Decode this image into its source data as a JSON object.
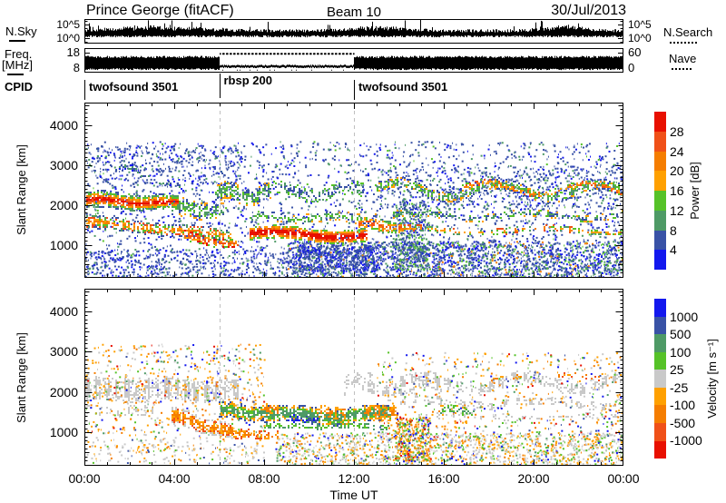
{
  "header": {
    "title": "Prince George (fitACF)",
    "beam": "Beam 10",
    "date": "30/Jul/2013"
  },
  "noise_panel": {
    "left_label": "N.Sky",
    "right_label": "N.Search",
    "tick_top": "10^5",
    "tick_bottom": "10^0"
  },
  "freq_panel": {
    "left_label_1": "Freq.",
    "left_label_2": "[MHz]",
    "tick_top": "18",
    "tick_bottom": "8",
    "right_tick_top": "60",
    "right_tick_bottom": "0",
    "right_label": "Nave"
  },
  "cpid_row": {
    "label": "CPID",
    "entries": [
      {
        "t": 0,
        "text": "twofsound 3501",
        "high": false
      },
      {
        "t": 6,
        "text": "rbsp 200",
        "high": true
      },
      {
        "t": 12,
        "text": "twofsound 3501",
        "high": false
      }
    ]
  },
  "chart_data": {
    "type": "heatmap",
    "title": "Prince George (fitACF) Beam 10 30/Jul/2013",
    "x": {
      "label": "Time UT",
      "min_hour": 0,
      "max_hour": 24,
      "tick_hours": [
        0,
        4,
        8,
        12,
        16,
        20,
        24
      ],
      "tick_labels": [
        "00:00",
        "04:00",
        "08:00",
        "12:00",
        "16:00",
        "20:00",
        "00:00"
      ]
    },
    "y": {
      "label": "Slant Range [km]",
      "min_km": 170,
      "max_km": 4560,
      "ticks": [
        1000,
        2000,
        3000,
        4000
      ]
    },
    "guide_hours": [
      6,
      12
    ],
    "noise": {
      "scale": "log 10^0 - 10^5",
      "base_frac": 0.62,
      "bumps": [
        {
          "h": 2.2,
          "w": 1.0,
          "a": 2.5
        },
        {
          "h": 4.6,
          "w": 1.4,
          "a": 2.0
        },
        {
          "h": 13.2,
          "w": 1.2,
          "a": 3.0
        },
        {
          "h": 21.4,
          "w": 0.9,
          "a": 3.5
        }
      ]
    },
    "freq": {
      "scale_mhz": [
        8,
        18
      ],
      "nave_scale": [
        0,
        60
      ],
      "segments": [
        {
          "t0": 0,
          "t1": 6,
          "mode": "solid"
        },
        {
          "t0": 6,
          "t1": 12,
          "mode": "split"
        },
        {
          "t0": 12,
          "t1": 24,
          "mode": "solid"
        }
      ]
    },
    "power": {
      "colorbar": {
        "title": "Power [dB]",
        "tick_labels": [
          "28",
          "24",
          "20",
          "16",
          "12",
          "8",
          "4"
        ],
        "colors": [
          "#e81000",
          "#f05018",
          "#f57d00",
          "#ffa000",
          "#56c228",
          "#4e9a66",
          "#3952a6",
          "#1318ee"
        ]
      },
      "features": [
        {
          "kind": "scatter",
          "t0": 0,
          "t1": 24,
          "r0": 250,
          "r1": 3600,
          "n": 2400,
          "w": [
            [
              6,
              0.6
            ],
            [
              7,
              0.25
            ],
            [
              5,
              0.1
            ],
            [
              4,
              0.05
            ]
          ]
        },
        {
          "kind": "scatter",
          "t0": 9,
          "t1": 24,
          "r0": 200,
          "r1": 1100,
          "n": 2100,
          "w": [
            [
              6,
              0.5
            ],
            [
              7,
              0.2
            ],
            [
              5,
              0.15
            ],
            [
              4,
              0.1
            ],
            [
              2,
              0.05
            ]
          ]
        },
        {
          "kind": "scatter",
          "t0": 0,
          "t1": 9,
          "r0": 200,
          "r1": 900,
          "n": 450,
          "w": [
            [
              6,
              0.7
            ],
            [
              7,
              0.2
            ],
            [
              5,
              0.1
            ]
          ]
        },
        {
          "kind": "scatter",
          "t0": 0.5,
          "t1": 7,
          "r0": 2500,
          "r1": 3500,
          "n": 330,
          "w": [
            [
              6,
              0.7
            ],
            [
              7,
              0.2
            ],
            [
              5,
              0.1
            ]
          ]
        },
        {
          "kind": "scatter",
          "t0": 13,
          "t1": 24,
          "r0": 1900,
          "r1": 3000,
          "n": 480,
          "w": [
            [
              6,
              0.65
            ],
            [
              5,
              0.2
            ],
            [
              7,
              0.15
            ]
          ]
        },
        {
          "kind": "scatter",
          "t0": 13.8,
          "t1": 15.3,
          "r0": 400,
          "r1": 2100,
          "n": 380,
          "w": [
            [
              6,
              0.5
            ],
            [
              5,
              0.25
            ],
            [
              4,
              0.15
            ],
            [
              7,
              0.1
            ]
          ]
        },
        {
          "kind": "scatter",
          "t0": 9.5,
          "t1": 13,
          "r0": 350,
          "r1": 1000,
          "n": 420,
          "w": [
            [
              6,
              0.7
            ],
            [
              7,
              0.3
            ]
          ]
        },
        {
          "kind": "band",
          "t0": 0,
          "t1": 4.2,
          "c0": 2150,
          "c1": 2050,
          "h0": 450,
          "h1": 380,
          "A": 40,
          "P": 3,
          "d": 0.85,
          "cols": [
            0,
            1,
            2,
            3,
            4,
            5,
            6
          ]
        },
        {
          "kind": "band",
          "t0": 0,
          "t1": 6.5,
          "c0": 1600,
          "c1": 1250,
          "h0": 350,
          "h1": 300,
          "A": 30,
          "P": 4,
          "d": 0.6,
          "cols": [
            2,
            3,
            4,
            1,
            5,
            6
          ]
        },
        {
          "kind": "band",
          "t0": 1.5,
          "t1": 4.5,
          "c0": 3000,
          "c1": 2400,
          "h0": 200,
          "h1": 150,
          "A": 60,
          "P": 2,
          "d": 0.25,
          "cols": [
            6,
            5,
            7
          ]
        },
        {
          "kind": "band",
          "t0": 3.8,
          "t1": 6.2,
          "c0": 1950,
          "c1": 1850,
          "h0": 500,
          "h1": 420,
          "A": 50,
          "P": 2,
          "d": 0.45,
          "cols": [
            5,
            4,
            6,
            3
          ]
        },
        {
          "kind": "band",
          "t0": 4.3,
          "t1": 6.8,
          "c0": 1250,
          "c1": 1000,
          "h0": 300,
          "h1": 220,
          "A": 30,
          "P": 2,
          "d": 0.65,
          "cols": [
            1,
            2,
            3,
            0,
            4
          ]
        },
        {
          "kind": "band",
          "t0": 5.8,
          "t1": 8.3,
          "c0": 2300,
          "c1": 2300,
          "h0": 500,
          "h1": 420,
          "A": 100,
          "P": 2,
          "d": 0.5,
          "cols": [
            5,
            4,
            6,
            3
          ]
        },
        {
          "kind": "band",
          "t0": 7.3,
          "t1": 12.6,
          "c0": 1300,
          "c1": 1250,
          "h0": 330,
          "h1": 330,
          "A": 60,
          "P": 5,
          "d": 0.95,
          "cols": [
            0,
            0,
            1,
            2,
            3,
            4
          ]
        },
        {
          "kind": "band",
          "t0": 7.3,
          "t1": 13,
          "c0": 1700,
          "c1": 1700,
          "h0": 250,
          "h1": 250,
          "A": 50,
          "P": 3,
          "d": 0.4,
          "cols": [
            4,
            5,
            6,
            3
          ]
        },
        {
          "kind": "band",
          "t0": 8,
          "t1": 12.5,
          "c0": 2350,
          "c1": 2350,
          "h0": 350,
          "h1": 350,
          "A": 120,
          "P": 3,
          "d": 0.35,
          "cols": [
            6,
            5,
            4
          ]
        },
        {
          "kind": "band",
          "t0": 12.2,
          "t1": 14.2,
          "c0": 1550,
          "c1": 1450,
          "h0": 380,
          "h1": 300,
          "A": 40,
          "P": 2,
          "d": 0.6,
          "cols": [
            1,
            2,
            3,
            4,
            5
          ]
        },
        {
          "kind": "band",
          "t0": 12.8,
          "t1": 24,
          "c0": 2400,
          "c1": 2350,
          "h0": 280,
          "h1": 280,
          "A": 180,
          "P": 4.5,
          "d": 0.55,
          "gap": 0.1,
          "cols": [
            5,
            4,
            3,
            6
          ]
        },
        {
          "kind": "band",
          "t0": 16.8,
          "t1": 24,
          "c0": 2450,
          "c1": 2400,
          "h0": 150,
          "h1": 150,
          "A": 150,
          "P": 4.5,
          "d": 0.5,
          "cols": [
            2,
            3,
            1,
            4
          ]
        },
        {
          "kind": "band",
          "t0": 13.5,
          "t1": 24,
          "c0": 1750,
          "c1": 1750,
          "h0": 180,
          "h1": 180,
          "A": 80,
          "P": 5,
          "d": 0.45,
          "gap": 0.12,
          "cols": [
            5,
            6,
            4,
            3
          ]
        },
        {
          "kind": "band",
          "t0": 13,
          "t1": 24,
          "c0": 1380,
          "c1": 1380,
          "h0": 160,
          "h1": 160,
          "A": 60,
          "P": 6,
          "d": 0.5,
          "gap": 0.25,
          "cols": [
            3,
            2,
            4,
            5,
            1
          ]
        }
      ]
    },
    "velocity": {
      "colorbar": {
        "title": "Velocity [m s⁻¹]",
        "tick_labels": [
          "1000",
          "500",
          "100",
          "25",
          "-25",
          "-100",
          "-500",
          "-1000"
        ],
        "colors": [
          "#1318ee",
          "#3952a6",
          "#4e9a66",
          "#56c228",
          "#c9c9c9",
          "#ffa000",
          "#f57d00",
          "#f05018",
          "#e81000"
        ]
      },
      "features": [
        {
          "kind": "band",
          "t0": 0,
          "t1": 6.8,
          "c0": 2100,
          "c1": 2050,
          "h0": 620,
          "h1": 520,
          "A": 40,
          "P": 3,
          "d": 0.8,
          "stripe": 0.22,
          "cols": [
            4
          ]
        },
        {
          "kind": "band",
          "t0": 0,
          "t1": 3,
          "c0": 1550,
          "c1": 1550,
          "h0": 260,
          "h1": 260,
          "A": 30,
          "P": 2,
          "d": 0.35,
          "stripe": 0.22,
          "cols": [
            4
          ]
        },
        {
          "kind": "scatter",
          "t0": 0,
          "t1": 8,
          "r0": 900,
          "r1": 3200,
          "n": 650,
          "w": [
            [
              5,
              0.3
            ],
            [
              6,
              0.15
            ],
            [
              4,
              0.2
            ],
            [
              3,
              0.1
            ],
            [
              2,
              0.08
            ],
            [
              0,
              0.07
            ],
            [
              8,
              0.05
            ],
            [
              1,
              0.05
            ]
          ]
        },
        {
          "kind": "scatter",
          "t0": 0,
          "t1": 8,
          "r0": 250,
          "r1": 900,
          "n": 240,
          "w": [
            [
              4,
              0.5
            ],
            [
              5,
              0.2
            ],
            [
              3,
              0.1
            ],
            [
              6,
              0.1
            ],
            [
              1,
              0.1
            ]
          ]
        },
        {
          "kind": "band",
          "t0": 3.8,
          "t1": 6.6,
          "c0": 1450,
          "c1": 1000,
          "h0": 460,
          "h1": 360,
          "A": 40,
          "P": 2,
          "d": 0.75,
          "cols": [
            6,
            5,
            7,
            4
          ]
        },
        {
          "kind": "band",
          "t0": 6.6,
          "t1": 8.6,
          "c0": 980,
          "c1": 950,
          "h0": 260,
          "h1": 200,
          "A": 20,
          "P": 2,
          "d": 0.5,
          "cols": [
            6,
            5,
            7
          ]
        },
        {
          "kind": "band",
          "t0": 5.9,
          "t1": 8.2,
          "c0": 1550,
          "c1": 1500,
          "h0": 420,
          "h1": 400,
          "A": 50,
          "P": 2,
          "d": 0.7,
          "cols": [
            2,
            3,
            5,
            1
          ]
        },
        {
          "kind": "band",
          "t0": 8,
          "t1": 13.6,
          "c0": 1450,
          "c1": 1450,
          "h0": 430,
          "h1": 430,
          "A": 60,
          "P": 4,
          "d": 0.8,
          "cols": [
            2,
            2,
            3,
            5,
            1
          ]
        },
        {
          "kind": "band",
          "t0": 8,
          "t1": 8.7,
          "c0": 1600,
          "c1": 1550,
          "h0": 260,
          "h1": 260,
          "A": 0,
          "P": 2,
          "d": 0.5,
          "cols": [
            6,
            5
          ]
        },
        {
          "kind": "band",
          "t0": 10.3,
          "t1": 11.6,
          "c0": 1500,
          "c1": 1500,
          "h0": 320,
          "h1": 320,
          "A": 30,
          "P": 1.5,
          "d": 0.5,
          "cols": [
            6,
            5
          ]
        },
        {
          "kind": "band",
          "t0": 12.4,
          "t1": 13.9,
          "c0": 1500,
          "c1": 1550,
          "h0": 360,
          "h1": 360,
          "A": 30,
          "P": 1.5,
          "d": 0.55,
          "cols": [
            6,
            5
          ]
        },
        {
          "kind": "band",
          "t0": 9,
          "t1": 10.4,
          "c0": 1350,
          "c1": 1350,
          "h0": 230,
          "h1": 230,
          "A": 20,
          "P": 2,
          "d": 0.6,
          "cols": [
            1,
            0,
            2
          ]
        },
        {
          "kind": "band",
          "t0": 8,
          "t1": 13.5,
          "c0": 1170,
          "c1": 1170,
          "h0": 130,
          "h1": 130,
          "A": 20,
          "P": 3,
          "d": 0.5,
          "cols": [
            3,
            2
          ]
        },
        {
          "kind": "band",
          "t0": 11.5,
          "t1": 16.2,
          "c0": 2150,
          "c1": 2150,
          "h0": 520,
          "h1": 460,
          "A": 150,
          "P": 3,
          "d": 0.45,
          "stripe": 0.3,
          "cols": [
            4
          ]
        },
        {
          "kind": "band",
          "t0": 14,
          "t1": 24,
          "c0": 2250,
          "c1": 2250,
          "h0": 300,
          "h1": 300,
          "A": 170,
          "P": 4.5,
          "d": 0.6,
          "stripe": 0.25,
          "gap": 0.1,
          "cols": [
            4
          ]
        },
        {
          "kind": "band",
          "t0": 14,
          "t1": 24,
          "c0": 1750,
          "c1": 1750,
          "h0": 200,
          "h1": 200,
          "A": 70,
          "P": 5,
          "d": 0.5,
          "stripe": 0.28,
          "gap": 0.15,
          "cols": [
            4
          ]
        },
        {
          "kind": "band",
          "t0": 15,
          "t1": 24,
          "c0": 1400,
          "c1": 1400,
          "h0": 150,
          "h1": 150,
          "A": 50,
          "P": 6,
          "d": 0.45,
          "stripe": 0.3,
          "gap": 0.2,
          "cols": [
            4
          ]
        },
        {
          "kind": "scatter",
          "t0": 13,
          "t1": 24,
          "r0": 900,
          "r1": 3000,
          "n": 620,
          "w": [
            [
              5,
              0.25
            ],
            [
              4,
              0.2
            ],
            [
              6,
              0.12
            ],
            [
              3,
              0.12
            ],
            [
              0,
              0.1
            ],
            [
              1,
              0.08
            ],
            [
              8,
              0.07
            ],
            [
              2,
              0.06
            ]
          ]
        },
        {
          "kind": "scatter",
          "t0": 8.5,
          "t1": 24,
          "r0": 200,
          "r1": 1000,
          "n": 1500,
          "w": [
            [
              4,
              0.45
            ],
            [
              5,
              0.2
            ],
            [
              3,
              0.12
            ],
            [
              6,
              0.1
            ],
            [
              2,
              0.07
            ],
            [
              0,
              0.06
            ]
          ]
        },
        {
          "kind": "scatter",
          "t0": 13.8,
          "t1": 15.4,
          "r0": 300,
          "r1": 1400,
          "n": 330,
          "w": [
            [
              6,
              0.3
            ],
            [
              3,
              0.2
            ],
            [
              5,
              0.2
            ],
            [
              0,
              0.1
            ],
            [
              8,
              0.1
            ],
            [
              2,
              0.1
            ]
          ]
        },
        {
          "kind": "band",
          "t0": 15.8,
          "t1": 17.3,
          "c0": 1550,
          "c1": 1550,
          "h0": 260,
          "h1": 260,
          "A": 40,
          "P": 2,
          "d": 0.35,
          "cols": [
            2,
            3,
            5
          ]
        },
        {
          "kind": "band",
          "t0": 18,
          "t1": 19.5,
          "c0": 2350,
          "c1": 2350,
          "h0": 150,
          "h1": 150,
          "A": 60,
          "P": 3,
          "d": 0.3,
          "cols": [
            5,
            6
          ]
        },
        {
          "kind": "band",
          "t0": 21,
          "t1": 23,
          "c0": 2420,
          "c1": 2380,
          "h0": 150,
          "h1": 150,
          "A": 50,
          "P": 3,
          "d": 0.3,
          "cols": [
            5,
            6,
            7
          ]
        }
      ]
    }
  }
}
